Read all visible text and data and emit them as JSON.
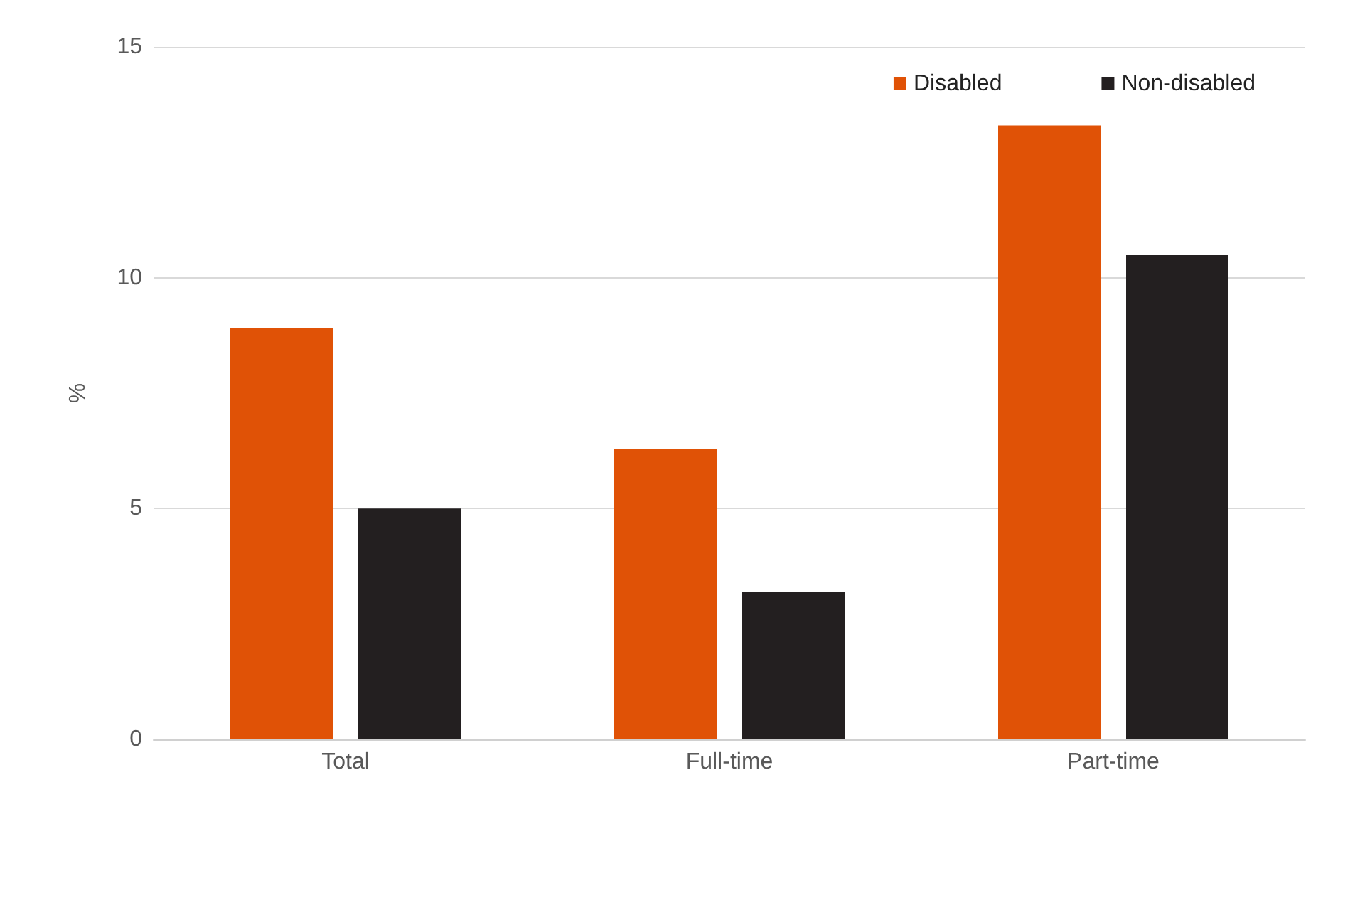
{
  "chart_data": {
    "type": "bar",
    "categories": [
      "Total",
      "Full-time",
      "Part-time"
    ],
    "ylabel": "%",
    "series": [
      {
        "name": "Disabled",
        "color": "#e05206",
        "values": [
          8.9,
          6.3,
          13.3
        ]
      },
      {
        "name": "Non-disabled",
        "color": "#231f20",
        "values": [
          5.0,
          3.2,
          10.5
        ]
      }
    ],
    "ylim": [
      0,
      15
    ],
    "yticks": [
      0,
      5,
      10,
      15
    ],
    "grid": "y",
    "legend": "top right"
  }
}
